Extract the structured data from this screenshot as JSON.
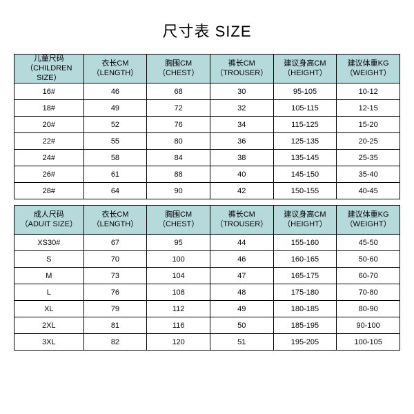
{
  "title": "尺寸表 SIZE",
  "header_bg": "#b6dadc",
  "row_bg": "#ffffff",
  "border_color": "#000000",
  "font": {
    "title_size": 22,
    "header_size": 11,
    "cell_size": 11
  },
  "children": {
    "columns": [
      {
        "cn": "儿童尺码",
        "en": "（CHILDREN SIZE）"
      },
      {
        "cn": "衣长CM",
        "en": "（LENGTH）"
      },
      {
        "cn": "胸围CM",
        "en": "（CHEST）"
      },
      {
        "cn": "裤长CM",
        "en": "（TROUSER）"
      },
      {
        "cn": "建议身高CM",
        "en": "（HEIGHT）"
      },
      {
        "cn": "建议体重KG",
        "en": "（WEIGHT）"
      }
    ],
    "rows": [
      [
        "16#",
        "46",
        "68",
        "30",
        "95-105",
        "10-12"
      ],
      [
        "18#",
        "49",
        "72",
        "32",
        "105-115",
        "12-15"
      ],
      [
        "20#",
        "52",
        "76",
        "34",
        "115-125",
        "15-20"
      ],
      [
        "22#",
        "55",
        "80",
        "36",
        "125-135",
        "20-25"
      ],
      [
        "24#",
        "58",
        "84",
        "38",
        "135-145",
        "25-35"
      ],
      [
        "26#",
        "61",
        "88",
        "40",
        "145-150",
        "35-40"
      ],
      [
        "28#",
        "64",
        "90",
        "42",
        "150-155",
        "40-45"
      ]
    ]
  },
  "adult": {
    "columns": [
      {
        "cn": "成人尺码",
        "en": "（ADUIT SIZE）"
      },
      {
        "cn": "衣长CM",
        "en": "（LENGTH）"
      },
      {
        "cn": "胸围CM",
        "en": "（CHEST）"
      },
      {
        "cn": "裤长CM",
        "en": "（TROUSER）"
      },
      {
        "cn": "建议身高CM",
        "en": "（HEIGHT）"
      },
      {
        "cn": "建议体重KG",
        "en": "（WEIGHT）"
      }
    ],
    "rows": [
      [
        "XS30#",
        "67",
        "95",
        "44",
        "155-160",
        "45-50"
      ],
      [
        "S",
        "70",
        "100",
        "46",
        "160-165",
        "50-60"
      ],
      [
        "M",
        "73",
        "104",
        "47",
        "165-175",
        "60-70"
      ],
      [
        "L",
        "76",
        "108",
        "48",
        "175-180",
        "70-80"
      ],
      [
        "XL",
        "79",
        "112",
        "49",
        "180-185",
        "80-90"
      ],
      [
        "2XL",
        "81",
        "116",
        "50",
        "185-195",
        "90-100"
      ],
      [
        "3XL",
        "82",
        "120",
        "51",
        "195-205",
        "100-105"
      ]
    ]
  }
}
